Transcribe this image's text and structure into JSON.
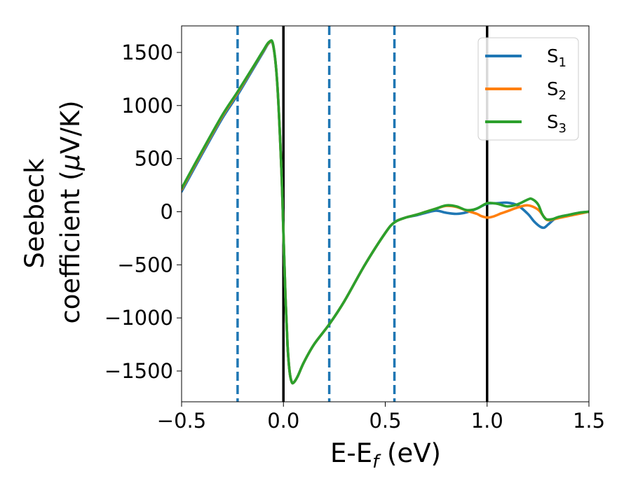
{
  "chart_data": {
    "type": "line",
    "title": "",
    "xlabel": {
      "main": "E-E",
      "sub": "f",
      "unit": " (eV)"
    },
    "ylabel": {
      "line1": "Seebeck",
      "line2": "coefficient  (",
      "mu": "μ",
      "unit": "V/K)"
    },
    "xlim": [
      -0.5,
      1.5
    ],
    "ylim": [
      -1790,
      1750
    ],
    "xticks": [
      -0.5,
      0.0,
      0.5,
      1.0,
      1.5
    ],
    "xtick_labels": [
      "−0.5",
      "0.0",
      "0.5",
      "1.0",
      "1.5"
    ],
    "yticks": [
      -1500,
      -1000,
      -500,
      0,
      500,
      1000,
      1500
    ],
    "ytick_labels": [
      "−1500",
      "−1000",
      "−500",
      "0",
      "500",
      "1000",
      "1500"
    ],
    "grid": false,
    "legend_position": "top-right",
    "vlines_solid": [
      0.0,
      1.0
    ],
    "vlines_dashed": [
      -0.225,
      0.225,
      0.545
    ],
    "colors": {
      "S1": "#1f77b4",
      "S2": "#ff7f0e",
      "S3": "#2ca02c",
      "solid_line": "#000000",
      "dashed_line": "#1f77b4"
    },
    "series": [
      {
        "name": "S1",
        "legend_base": "S",
        "legend_sub": "1",
        "color": "#1f77b4",
        "x": [
          -0.5,
          -0.4,
          -0.3,
          -0.225,
          -0.15,
          -0.1,
          -0.07,
          -0.05,
          -0.03,
          -0.01,
          0.0,
          0.01,
          0.02,
          0.03,
          0.04,
          0.05,
          0.07,
          0.1,
          0.15,
          0.225,
          0.3,
          0.4,
          0.5,
          0.545,
          0.6,
          0.65,
          0.7,
          0.75,
          0.8,
          0.85,
          0.9,
          0.95,
          1.0,
          1.05,
          1.1,
          1.15,
          1.2,
          1.23,
          1.26,
          1.28,
          1.3,
          1.33,
          1.36,
          1.4,
          1.45,
          1.5
        ],
        "y": [
          190,
          540,
          880,
          1100,
          1340,
          1500,
          1590,
          1560,
          1200,
          400,
          -200,
          -800,
          -1250,
          -1500,
          -1600,
          -1610,
          -1550,
          -1420,
          -1250,
          -1060,
          -840,
          -500,
          -200,
          -100,
          -55,
          -35,
          -10,
          10,
          -10,
          -20,
          -5,
          30,
          75,
          80,
          85,
          60,
          -20,
          -90,
          -140,
          -150,
          -120,
          -70,
          -45,
          -30,
          -10,
          0
        ]
      },
      {
        "name": "S2",
        "legend_base": "S",
        "legend_sub": "2",
        "color": "#ff7f0e",
        "x": [
          -0.5,
          -0.4,
          -0.3,
          -0.225,
          -0.15,
          -0.1,
          -0.07,
          -0.05,
          -0.03,
          -0.01,
          0.0,
          0.01,
          0.02,
          0.03,
          0.04,
          0.05,
          0.07,
          0.1,
          0.15,
          0.225,
          0.3,
          0.4,
          0.5,
          0.545,
          0.6,
          0.65,
          0.7,
          0.75,
          0.8,
          0.85,
          0.9,
          0.95,
          0.97,
          1.0,
          1.03,
          1.07,
          1.1,
          1.15,
          1.2,
          1.25,
          1.28,
          1.3,
          1.35,
          1.4,
          1.45,
          1.5
        ],
        "y": [
          210,
          560,
          900,
          1120,
          1355,
          1510,
          1595,
          1565,
          1200,
          400,
          -200,
          -800,
          -1250,
          -1500,
          -1600,
          -1610,
          -1550,
          -1420,
          -1250,
          -1060,
          -840,
          -500,
          -200,
          -100,
          -55,
          -30,
          0,
          30,
          55,
          45,
          10,
          -20,
          -40,
          -55,
          -45,
          -15,
          5,
          40,
          60,
          20,
          -50,
          -80,
          -60,
          -40,
          -20,
          0
        ]
      },
      {
        "name": "S3",
        "legend_base": "S",
        "legend_sub": "3",
        "color": "#2ca02c",
        "x": [
          -0.5,
          -0.4,
          -0.3,
          -0.225,
          -0.15,
          -0.1,
          -0.07,
          -0.05,
          -0.03,
          -0.01,
          0.0,
          0.01,
          0.02,
          0.03,
          0.04,
          0.05,
          0.07,
          0.1,
          0.15,
          0.225,
          0.3,
          0.4,
          0.5,
          0.545,
          0.6,
          0.65,
          0.7,
          0.75,
          0.8,
          0.85,
          0.9,
          0.95,
          1.0,
          1.05,
          1.1,
          1.15,
          1.2,
          1.22,
          1.25,
          1.27,
          1.29,
          1.32,
          1.35,
          1.4,
          1.45,
          1.5
        ],
        "y": [
          220,
          570,
          910,
          1130,
          1360,
          1515,
          1600,
          1570,
          1200,
          400,
          -200,
          -800,
          -1250,
          -1500,
          -1600,
          -1610,
          -1550,
          -1420,
          -1250,
          -1060,
          -840,
          -500,
          -200,
          -100,
          -55,
          -30,
          0,
          30,
          60,
          50,
          15,
          30,
          80,
          75,
          50,
          70,
          115,
          120,
          70,
          -20,
          -70,
          -70,
          -50,
          -30,
          -10,
          0
        ]
      }
    ]
  }
}
